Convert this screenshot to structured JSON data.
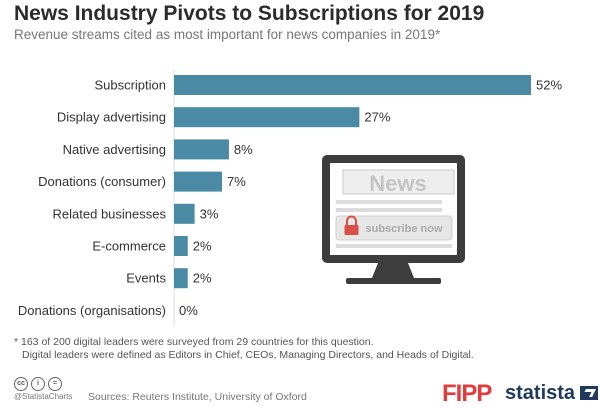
{
  "header": {
    "title": "News Industry Pivots to Subscriptions for 2019",
    "subtitle": "Revenue streams cited as most important for news companies in 2019*"
  },
  "chart_data": {
    "type": "bar",
    "orientation": "horizontal",
    "categories": [
      "Subscription",
      "Display advertising",
      "Native advertising",
      "Donations (consumer)",
      "Related businesses",
      "E-commerce",
      "Events",
      "Donations (organisations)"
    ],
    "values": [
      52,
      27,
      8,
      7,
      3,
      2,
      2,
      0
    ],
    "value_labels": [
      "52%",
      "27%",
      "8%",
      "7%",
      "3%",
      "2%",
      "2%",
      "0%"
    ],
    "unit": "%",
    "title": "News Industry Pivots to Subscriptions for 2019",
    "subtitle": "Revenue streams cited as most important for news companies in 2019*",
    "xlim": [
      0,
      52
    ],
    "grid": false,
    "legend": "none",
    "bar_color": "#4a8aa4"
  },
  "illustration": {
    "screen_word": "News",
    "button_label": "subscribe now",
    "monitor_color": "#3d3d3d",
    "icons": [
      "monitor-icon",
      "lock-icon"
    ]
  },
  "footnote": {
    "line1": "* 163 of 200 digital leaders were surveyed from 29 countries for this question.",
    "line2": "Digital leaders were defined as Editors in Chief, CEOs, Managing Directors, and Heads of Digital."
  },
  "footer": {
    "cc_icons": [
      "cc",
      "i",
      "="
    ],
    "handle": "@StatistaCharts",
    "sources": "Sources: Reuters Institute, University of Oxford",
    "fipp_logo": "FIPP",
    "statista_logo": "statista"
  }
}
